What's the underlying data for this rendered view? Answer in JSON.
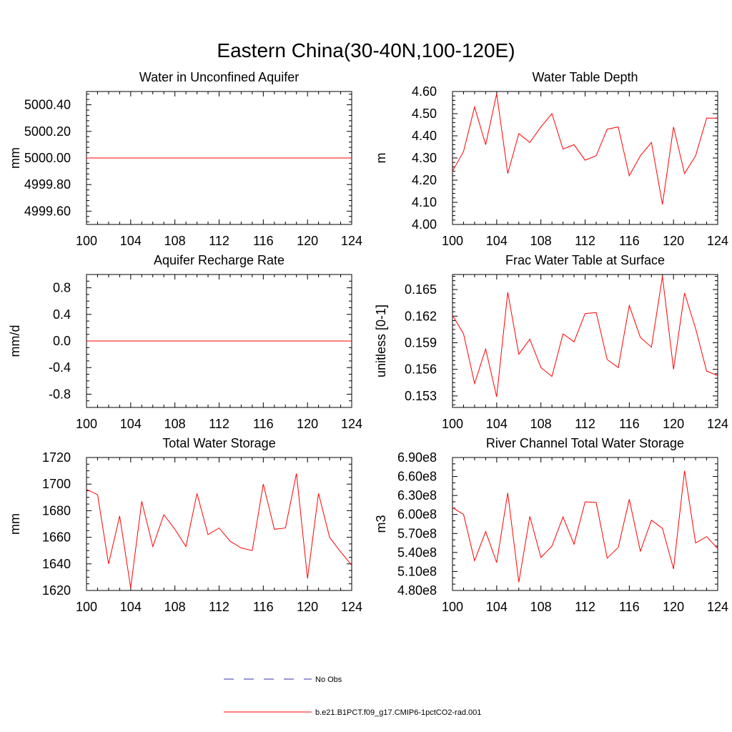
{
  "figure_title": "Eastern China(30-40N,100-120E)",
  "colors": {
    "model_line": "#ff0000",
    "obs_line": "#3333aa",
    "axis": "#000000"
  },
  "legend": [
    {
      "label": "No Obs",
      "style": "dashed",
      "color": "#3333aa"
    },
    {
      "label": "b.e21.B1PCT.f09_g17.CMIP6-1pctCO2-rad.001",
      "style": "solid",
      "color": "#ff0000"
    }
  ],
  "chart_data": [
    {
      "type": "line",
      "title": "Water in Unconfined Aquifer",
      "ylabel": "mm",
      "xlim": [
        100,
        124
      ],
      "ylim": [
        4999.5,
        5000.5
      ],
      "xticks": [
        100,
        104,
        108,
        112,
        116,
        120,
        124
      ],
      "xtick_labels": [
        "100",
        "104",
        "108",
        "112",
        "116",
        "120",
        "124"
      ],
      "yticks": [
        4999.6,
        4999.8,
        5000.0,
        5000.2,
        5000.4
      ],
      "ytick_labels": [
        "4999.60",
        "4999.80",
        "5000.00",
        "5000.20",
        "5000.40"
      ],
      "yminor": 4,
      "series": [
        {
          "x": [
            100,
            101,
            102,
            103,
            104,
            105,
            106,
            107,
            108,
            109,
            110,
            111,
            112,
            113,
            114,
            115,
            116,
            117,
            118,
            119,
            120,
            121,
            122,
            123,
            124
          ],
          "values": [
            5000,
            5000,
            5000,
            5000,
            5000,
            5000,
            5000,
            5000,
            5000,
            5000,
            5000,
            5000,
            5000,
            5000,
            5000,
            5000,
            5000,
            5000,
            5000,
            5000,
            5000,
            5000,
            5000,
            5000,
            5000
          ]
        }
      ]
    },
    {
      "type": "line",
      "title": "Water Table Depth",
      "ylabel": "m",
      "xlim": [
        100,
        124
      ],
      "ylim": [
        4.0,
        4.6
      ],
      "xticks": [
        100,
        104,
        108,
        112,
        116,
        120,
        124
      ],
      "xtick_labels": [
        "100",
        "104",
        "108",
        "112",
        "116",
        "120",
        "124"
      ],
      "yticks": [
        4.0,
        4.1,
        4.2,
        4.3,
        4.4,
        4.5,
        4.6
      ],
      "ytick_labels": [
        "4.00",
        "4.10",
        "4.20",
        "4.30",
        "4.40",
        "4.50",
        "4.60"
      ],
      "yminor": 4,
      "series": [
        {
          "x": [
            100,
            101,
            102,
            103,
            104,
            105,
            106,
            107,
            108,
            109,
            110,
            111,
            112,
            113,
            114,
            115,
            116,
            117,
            118,
            119,
            120,
            121,
            122,
            123,
            124
          ],
          "values": [
            4.24,
            4.33,
            4.53,
            4.36,
            4.59,
            4.23,
            4.41,
            4.37,
            4.44,
            4.5,
            4.34,
            4.36,
            4.29,
            4.31,
            4.43,
            4.44,
            4.22,
            4.31,
            4.37,
            4.09,
            4.44,
            4.23,
            4.31,
            4.48,
            4.48
          ]
        }
      ]
    },
    {
      "type": "line",
      "title": "Aquifer Recharge Rate",
      "ylabel": "mm/d",
      "xlim": [
        100,
        124
      ],
      "ylim": [
        -1.0,
        1.0
      ],
      "xticks": [
        100,
        104,
        108,
        112,
        116,
        120,
        124
      ],
      "xtick_labels": [
        "100",
        "104",
        "108",
        "112",
        "116",
        "120",
        "124"
      ],
      "yticks": [
        -0.8,
        -0.4,
        0.0,
        0.4,
        0.8
      ],
      "ytick_labels": [
        "-0.8",
        "-0.4",
        "0.0",
        "0.4",
        "0.8"
      ],
      "yminor": 3,
      "series": [
        {
          "x": [
            100,
            101,
            102,
            103,
            104,
            105,
            106,
            107,
            108,
            109,
            110,
            111,
            112,
            113,
            114,
            115,
            116,
            117,
            118,
            119,
            120,
            121,
            122,
            123,
            124
          ],
          "values": [
            0,
            0,
            0,
            0,
            0,
            0,
            0,
            0,
            0,
            0,
            0,
            0,
            0,
            0,
            0,
            0,
            0,
            0,
            0,
            0,
            0,
            0,
            0,
            0,
            0
          ]
        }
      ]
    },
    {
      "type": "line",
      "title": "Frac Water Table at Surface",
      "ylabel": "unitless [0-1]",
      "xlim": [
        100,
        124
      ],
      "ylim": [
        0.1517,
        0.1667
      ],
      "xticks": [
        100,
        104,
        108,
        112,
        116,
        120,
        124
      ],
      "xtick_labels": [
        "100",
        "104",
        "108",
        "112",
        "116",
        "120",
        "124"
      ],
      "yticks": [
        0.153,
        0.156,
        0.159,
        0.162,
        0.165
      ],
      "ytick_labels": [
        "0.153",
        "0.156",
        "0.159",
        "0.162",
        "0.165"
      ],
      "yminor": 5,
      "series": [
        {
          "x": [
            100,
            101,
            102,
            103,
            104,
            105,
            106,
            107,
            108,
            109,
            110,
            111,
            112,
            113,
            114,
            115,
            116,
            117,
            118,
            119,
            120,
            121,
            122,
            123,
            124
          ],
          "values": [
            0.1621,
            0.16,
            0.1544,
            0.1583,
            0.1529,
            0.1647,
            0.1577,
            0.1594,
            0.1562,
            0.1552,
            0.16,
            0.1591,
            0.1623,
            0.1624,
            0.1571,
            0.1562,
            0.1632,
            0.1596,
            0.1585,
            0.1665,
            0.156,
            0.1646,
            0.1606,
            0.1558,
            0.1553
          ]
        }
      ]
    },
    {
      "type": "line",
      "title": "Total Water Storage",
      "ylabel": "mm",
      "xlim": [
        100,
        124
      ],
      "ylim": [
        1620,
        1720
      ],
      "xticks": [
        100,
        104,
        108,
        112,
        116,
        120,
        124
      ],
      "xtick_labels": [
        "100",
        "104",
        "108",
        "112",
        "116",
        "120",
        "124"
      ],
      "yticks": [
        1620,
        1640,
        1660,
        1680,
        1700,
        1720
      ],
      "ytick_labels": [
        "1620",
        "1640",
        "1660",
        "1680",
        "1700",
        "1720"
      ],
      "yminor": 3,
      "series": [
        {
          "x": [
            100,
            101,
            102,
            103,
            104,
            105,
            106,
            107,
            108,
            109,
            110,
            111,
            112,
            113,
            114,
            115,
            116,
            117,
            118,
            119,
            120,
            121,
            122,
            123,
            124
          ],
          "values": [
            1696,
            1692,
            1640,
            1676,
            1622,
            1687,
            1653,
            1677,
            1666,
            1653,
            1693,
            1662,
            1667,
            1657,
            1652,
            1650,
            1700,
            1666,
            1667,
            1708,
            1629,
            1693,
            1660,
            1649,
            1639
          ]
        }
      ]
    },
    {
      "type": "line",
      "title": "River Channel Total Water Storage",
      "ylabel": "m3",
      "xlim": [
        100,
        124
      ],
      "ylim": [
        480000000,
        690000000
      ],
      "xticks": [
        100,
        104,
        108,
        112,
        116,
        120,
        124
      ],
      "xtick_labels": [
        "100",
        "104",
        "108",
        "112",
        "116",
        "120",
        "124"
      ],
      "yticks": [
        480000000,
        510000000,
        540000000,
        570000000,
        600000000,
        630000000,
        660000000,
        690000000
      ],
      "ytick_labels": [
        "4.80e8",
        "5.10e8",
        "5.40e8",
        "5.70e8",
        "6.00e8",
        "6.30e8",
        "6.60e8",
        "6.90e8"
      ],
      "yminor": 2,
      "series": [
        {
          "x": [
            100,
            101,
            102,
            103,
            104,
            105,
            106,
            107,
            108,
            109,
            110,
            111,
            112,
            113,
            114,
            115,
            116,
            117,
            118,
            119,
            120,
            121,
            122,
            123,
            124
          ],
          "values": [
            611000000,
            600000000,
            527000000,
            573000000,
            524000000,
            634000000,
            493000000,
            597000000,
            532000000,
            550000000,
            596000000,
            553000000,
            620000000,
            619000000,
            531000000,
            548000000,
            624000000,
            542000000,
            591000000,
            578000000,
            514000000,
            669000000,
            555000000,
            565000000,
            546000000
          ]
        }
      ]
    }
  ]
}
